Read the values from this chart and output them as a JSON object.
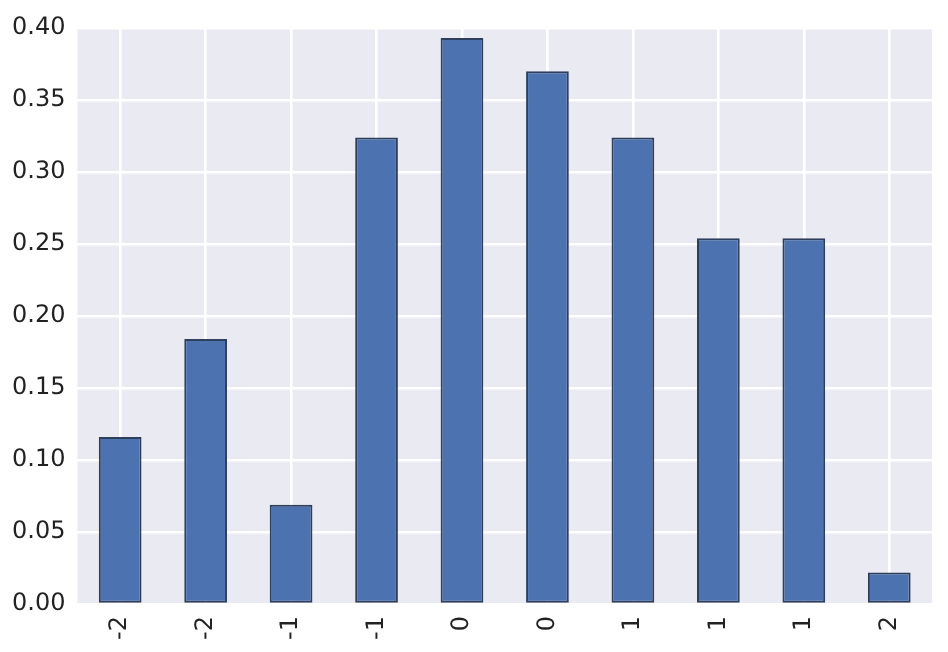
{
  "chart_data": {
    "type": "bar",
    "categories": [
      "-2",
      "-2",
      "-1",
      "-1",
      "0",
      "0",
      "1",
      "1",
      "1",
      "2"
    ],
    "values": [
      0.116,
      0.184,
      0.069,
      0.324,
      0.393,
      0.37,
      0.324,
      0.254,
      0.254,
      0.022
    ],
    "color": "#4c72b0",
    "ylim": [
      0,
      0.4
    ],
    "yticks": [
      {
        "value": 0,
        "label": "0.00"
      },
      {
        "value": 0.05,
        "label": "0.05"
      },
      {
        "value": 0.1,
        "label": "0.10"
      },
      {
        "value": 0.15,
        "label": "0.15"
      },
      {
        "value": 0.2,
        "label": "0.20"
      },
      {
        "value": 0.25,
        "label": "0.25"
      },
      {
        "value": 0.3,
        "label": "0.30"
      },
      {
        "value": 0.35,
        "label": "0.35"
      },
      {
        "value": 0.4,
        "label": "0.40"
      }
    ],
    "grid": true
  }
}
